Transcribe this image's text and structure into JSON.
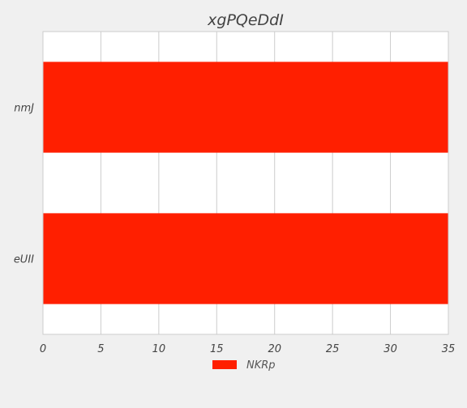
{
  "chart_data": {
    "type": "bar",
    "orientation": "horizontal",
    "title": "xgPQeDdI",
    "xlabel": "",
    "ylabel": "",
    "categories": [
      "nmJ",
      "eUII"
    ],
    "series": [
      {
        "name": "NKRp",
        "values": [
          35,
          35
        ],
        "color": "#ff1f00"
      }
    ],
    "xlim": [
      0,
      35
    ],
    "xticks": [
      0,
      5,
      10,
      15,
      20,
      25,
      30,
      35
    ],
    "grid": "vertical",
    "legend_position": "bottom-center",
    "colors": {
      "background": "#f0f0f0",
      "plot_area": "#ffffff",
      "grid": "#cccccc",
      "bar": "#ff1f00"
    }
  }
}
